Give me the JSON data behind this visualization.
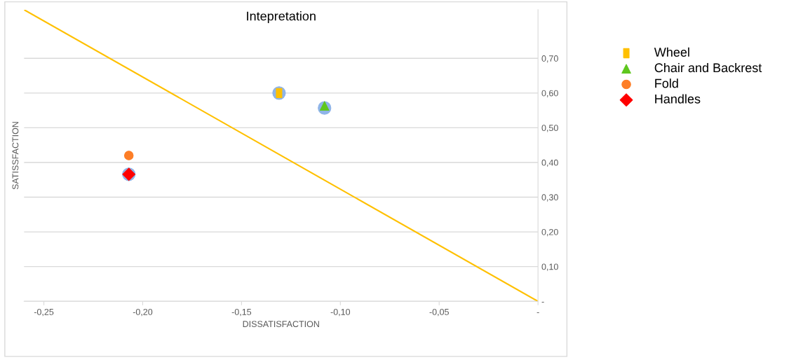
{
  "chart_data": {
    "type": "scatter",
    "title": "Intepretation",
    "xlabel": "DISSATISFACTION",
    "ylabel": "SATISSFACTION",
    "xlim": [
      -0.26,
      0
    ],
    "ylim": [
      0,
      0.84
    ],
    "xticks": [
      {
        "value": -0.25,
        "label": "-0,25"
      },
      {
        "value": -0.2,
        "label": "-0,20"
      },
      {
        "value": -0.15,
        "label": "-0,15"
      },
      {
        "value": -0.1,
        "label": "-0,10"
      },
      {
        "value": -0.05,
        "label": "-0,05"
      },
      {
        "value": 0,
        "label": "-"
      }
    ],
    "yticks": [
      {
        "value": 0,
        "label": "-"
      },
      {
        "value": 0.1,
        "label": "0,10"
      },
      {
        "value": 0.2,
        "label": "0,20"
      },
      {
        "value": 0.3,
        "label": "0,30"
      },
      {
        "value": 0.4,
        "label": "0,40"
      },
      {
        "value": 0.5,
        "label": "0,50"
      },
      {
        "value": 0.6,
        "label": "0,60"
      },
      {
        "value": 0.7,
        "label": "0,70"
      }
    ],
    "grid": "y",
    "legend": "top right",
    "series": [
      {
        "type": "line",
        "color": "#ffc000",
        "x": [
          -0.26,
          0
        ],
        "values": [
          0.84,
          0
        ],
        "marker": "none"
      },
      {
        "color": "#8fb4e8",
        "x": [
          -0.131,
          -0.108,
          -0.207
        ],
        "values": [
          0.6,
          0.557,
          0.366
        ],
        "marker": "circle"
      },
      {
        "name": "Wheel",
        "color": "#ffc000",
        "x": [
          -0.131
        ],
        "values": [
          0.6
        ],
        "marker": "square"
      },
      {
        "name": "Chair and Backrest",
        "color": "#5fc71e",
        "x": [
          -0.108
        ],
        "values": [
          0.563
        ],
        "marker": "triangle"
      },
      {
        "name": "Fold",
        "color": "#fd7e27",
        "x": [
          -0.207
        ],
        "values": [
          0.42
        ],
        "marker": "circle"
      },
      {
        "name": "Handles",
        "color": "#ff0000",
        "x": [
          -0.207
        ],
        "values": [
          0.366
        ],
        "marker": "diamond"
      }
    ]
  }
}
